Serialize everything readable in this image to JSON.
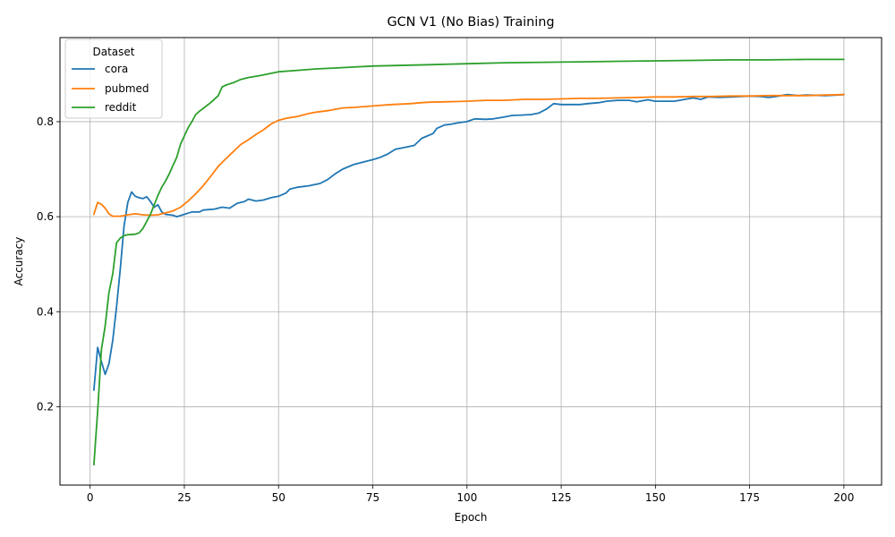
{
  "chart_data": {
    "type": "line",
    "title": "GCN V1 (No Bias) Training",
    "xlabel": "Epoch",
    "ylabel": "Accuracy",
    "xlim": [
      -8,
      210
    ],
    "ylim": [
      0.035,
      0.977
    ],
    "xticks": [
      0,
      25,
      50,
      75,
      100,
      125,
      150,
      175,
      200
    ],
    "yticks": [
      0.2,
      0.4,
      0.6,
      0.8
    ],
    "ytick_labels": [
      "0.2",
      "0.4",
      "0.6",
      "0.8"
    ],
    "grid": true,
    "legend": {
      "title": "Dataset",
      "placement": "top-left"
    },
    "series": [
      {
        "name": "cora",
        "color": "#1f77b4",
        "points": [
          [
            1,
            0.235
          ],
          [
            2,
            0.325
          ],
          [
            3,
            0.295
          ],
          [
            4,
            0.268
          ],
          [
            5,
            0.29
          ],
          [
            6,
            0.34
          ],
          [
            7,
            0.41
          ],
          [
            8,
            0.49
          ],
          [
            9,
            0.58
          ],
          [
            10,
            0.63
          ],
          [
            11,
            0.652
          ],
          [
            12,
            0.643
          ],
          [
            13,
            0.64
          ],
          [
            14,
            0.638
          ],
          [
            15,
            0.642
          ],
          [
            16,
            0.632
          ],
          [
            17,
            0.62
          ],
          [
            18,
            0.625
          ],
          [
            19,
            0.61
          ],
          [
            20,
            0.605
          ],
          [
            22,
            0.603
          ],
          [
            23,
            0.6
          ],
          [
            25,
            0.605
          ],
          [
            27,
            0.61
          ],
          [
            29,
            0.61
          ],
          [
            30,
            0.614
          ],
          [
            33,
            0.616
          ],
          [
            35,
            0.62
          ],
          [
            37,
            0.618
          ],
          [
            39,
            0.628
          ],
          [
            41,
            0.632
          ],
          [
            42,
            0.637
          ],
          [
            44,
            0.633
          ],
          [
            46,
            0.635
          ],
          [
            48,
            0.64
          ],
          [
            50,
            0.643
          ],
          [
            52,
            0.65
          ],
          [
            53,
            0.658
          ],
          [
            55,
            0.662
          ],
          [
            58,
            0.665
          ],
          [
            61,
            0.67
          ],
          [
            63,
            0.678
          ],
          [
            65,
            0.69
          ],
          [
            67,
            0.7
          ],
          [
            70,
            0.71
          ],
          [
            73,
            0.716
          ],
          [
            75,
            0.72
          ],
          [
            77,
            0.725
          ],
          [
            79,
            0.732
          ],
          [
            81,
            0.742
          ],
          [
            83,
            0.745
          ],
          [
            86,
            0.75
          ],
          [
            88,
            0.765
          ],
          [
            91,
            0.775
          ],
          [
            92,
            0.786
          ],
          [
            94,
            0.793
          ],
          [
            96,
            0.795
          ],
          [
            98,
            0.798
          ],
          [
            100,
            0.8
          ],
          [
            102,
            0.806
          ],
          [
            105,
            0.805
          ],
          [
            107,
            0.806
          ],
          [
            110,
            0.81
          ],
          [
            112,
            0.813
          ],
          [
            115,
            0.814
          ],
          [
            117,
            0.815
          ],
          [
            119,
            0.818
          ],
          [
            121,
            0.826
          ],
          [
            123,
            0.838
          ],
          [
            125,
            0.836
          ],
          [
            127,
            0.836
          ],
          [
            130,
            0.836
          ],
          [
            132,
            0.838
          ],
          [
            135,
            0.84
          ],
          [
            137,
            0.843
          ],
          [
            140,
            0.845
          ],
          [
            143,
            0.845
          ],
          [
            145,
            0.842
          ],
          [
            148,
            0.846
          ],
          [
            150,
            0.843
          ],
          [
            155,
            0.843
          ],
          [
            160,
            0.85
          ],
          [
            162,
            0.847
          ],
          [
            164,
            0.852
          ],
          [
            167,
            0.851
          ],
          [
            170,
            0.852
          ],
          [
            175,
            0.854
          ],
          [
            178,
            0.853
          ],
          [
            180,
            0.851
          ],
          [
            182,
            0.853
          ],
          [
            185,
            0.857
          ],
          [
            188,
            0.855
          ],
          [
            190,
            0.856
          ],
          [
            195,
            0.855
          ],
          [
            198,
            0.856
          ],
          [
            200,
            0.857
          ]
        ]
      },
      {
        "name": "pubmed",
        "color": "#ff7f0e",
        "points": [
          [
            1,
            0.605
          ],
          [
            2,
            0.63
          ],
          [
            3,
            0.626
          ],
          [
            4,
            0.618
          ],
          [
            5,
            0.606
          ],
          [
            6,
            0.601
          ],
          [
            8,
            0.601
          ],
          [
            10,
            0.604
          ],
          [
            12,
            0.606
          ],
          [
            14,
            0.604
          ],
          [
            16,
            0.603
          ],
          [
            18,
            0.604
          ],
          [
            20,
            0.608
          ],
          [
            22,
            0.612
          ],
          [
            24,
            0.62
          ],
          [
            26,
            0.633
          ],
          [
            28,
            0.648
          ],
          [
            30,
            0.665
          ],
          [
            32,
            0.685
          ],
          [
            34,
            0.706
          ],
          [
            36,
            0.722
          ],
          [
            38,
            0.737
          ],
          [
            40,
            0.752
          ],
          [
            42,
            0.762
          ],
          [
            44,
            0.773
          ],
          [
            46,
            0.783
          ],
          [
            48,
            0.795
          ],
          [
            50,
            0.803
          ],
          [
            52,
            0.807
          ],
          [
            55,
            0.811
          ],
          [
            58,
            0.817
          ],
          [
            60,
            0.82
          ],
          [
            63,
            0.823
          ],
          [
            65,
            0.826
          ],
          [
            67,
            0.829
          ],
          [
            70,
            0.83
          ],
          [
            75,
            0.833
          ],
          [
            80,
            0.836
          ],
          [
            85,
            0.838
          ],
          [
            88,
            0.84
          ],
          [
            90,
            0.841
          ],
          [
            95,
            0.842
          ],
          [
            100,
            0.843
          ],
          [
            105,
            0.845
          ],
          [
            110,
            0.845
          ],
          [
            115,
            0.847
          ],
          [
            120,
            0.847
          ],
          [
            125,
            0.848
          ],
          [
            130,
            0.849
          ],
          [
            135,
            0.849
          ],
          [
            140,
            0.85
          ],
          [
            145,
            0.851
          ],
          [
            150,
            0.852
          ],
          [
            155,
            0.852
          ],
          [
            160,
            0.853
          ],
          [
            165,
            0.853
          ],
          [
            170,
            0.854
          ],
          [
            175,
            0.854
          ],
          [
            180,
            0.855
          ],
          [
            185,
            0.855
          ],
          [
            190,
            0.855
          ],
          [
            195,
            0.856
          ],
          [
            200,
            0.857
          ]
        ]
      },
      {
        "name": "reddit",
        "color": "#2ca02c",
        "points": [
          [
            1,
            0.078
          ],
          [
            2,
            0.19
          ],
          [
            3,
            0.32
          ],
          [
            4,
            0.37
          ],
          [
            5,
            0.44
          ],
          [
            6,
            0.48
          ],
          [
            7,
            0.545
          ],
          [
            8,
            0.555
          ],
          [
            9,
            0.56
          ],
          [
            10,
            0.562
          ],
          [
            12,
            0.563
          ],
          [
            13,
            0.566
          ],
          [
            14,
            0.575
          ],
          [
            15,
            0.59
          ],
          [
            16,
            0.605
          ],
          [
            17,
            0.625
          ],
          [
            18,
            0.645
          ],
          [
            19,
            0.662
          ],
          [
            20,
            0.675
          ],
          [
            21,
            0.69
          ],
          [
            22,
            0.708
          ],
          [
            23,
            0.725
          ],
          [
            24,
            0.753
          ],
          [
            25,
            0.77
          ],
          [
            26,
            0.787
          ],
          [
            27,
            0.8
          ],
          [
            28,
            0.815
          ],
          [
            29,
            0.822
          ],
          [
            30,
            0.828
          ],
          [
            32,
            0.84
          ],
          [
            34,
            0.855
          ],
          [
            35,
            0.873
          ],
          [
            36,
            0.877
          ],
          [
            38,
            0.882
          ],
          [
            40,
            0.889
          ],
          [
            42,
            0.893
          ],
          [
            45,
            0.897
          ],
          [
            50,
            0.905
          ],
          [
            55,
            0.908
          ],
          [
            60,
            0.911
          ],
          [
            65,
            0.913
          ],
          [
            70,
            0.915
          ],
          [
            75,
            0.917
          ],
          [
            80,
            0.918
          ],
          [
            90,
            0.92
          ],
          [
            100,
            0.922
          ],
          [
            110,
            0.924
          ],
          [
            120,
            0.925
          ],
          [
            130,
            0.926
          ],
          [
            140,
            0.927
          ],
          [
            150,
            0.928
          ],
          [
            160,
            0.929
          ],
          [
            170,
            0.93
          ],
          [
            180,
            0.93
          ],
          [
            190,
            0.931
          ],
          [
            200,
            0.931
          ]
        ]
      }
    ]
  }
}
